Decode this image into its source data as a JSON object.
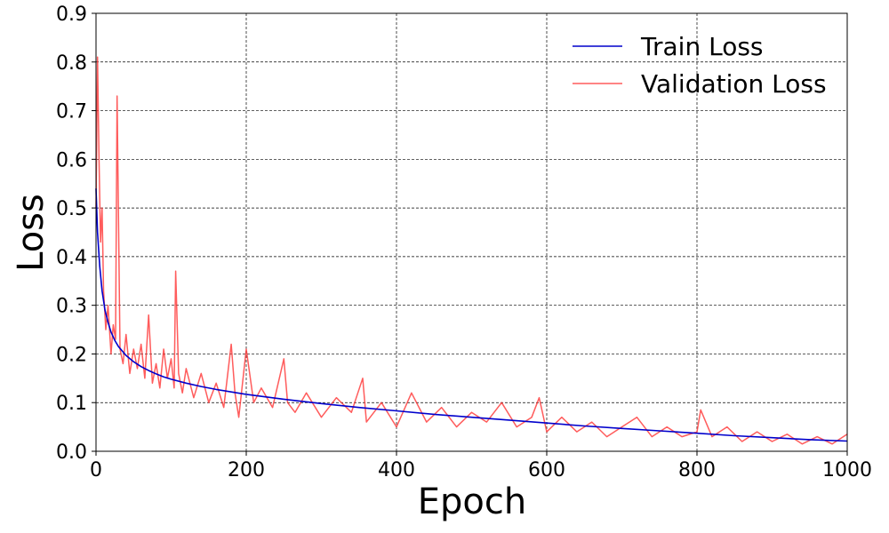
{
  "chart_data": {
    "type": "line",
    "title": "",
    "xlabel": "Epoch",
    "ylabel": "Loss",
    "xlim": [
      0,
      1000
    ],
    "ylim": [
      0,
      0.9
    ],
    "xticks": [
      0,
      200,
      400,
      600,
      800,
      1000
    ],
    "yticks": [
      0.0,
      0.1,
      0.2,
      0.3,
      0.4,
      0.5,
      0.6,
      0.7,
      0.8,
      0.9
    ],
    "xtick_labels": [
      "0",
      "200",
      "400",
      "600",
      "800",
      "1000"
    ],
    "ytick_labels": [
      "0.0",
      "0.1",
      "0.2",
      "0.3",
      "0.4",
      "0.5",
      "0.6",
      "0.7",
      "0.8",
      "0.9"
    ],
    "grid": true,
    "legend_position": "top-right",
    "series": [
      {
        "name": "Train Loss",
        "color": "#0000cc",
        "x": [
          0,
          2,
          5,
          8,
          12,
          16,
          20,
          25,
          30,
          40,
          50,
          60,
          70,
          80,
          90,
          100,
          120,
          140,
          160,
          180,
          200,
          250,
          300,
          350,
          400,
          450,
          500,
          550,
          600,
          650,
          700,
          750,
          800,
          850,
          900,
          950,
          1000
        ],
        "values": [
          0.54,
          0.45,
          0.38,
          0.33,
          0.29,
          0.265,
          0.245,
          0.228,
          0.215,
          0.197,
          0.184,
          0.174,
          0.166,
          0.159,
          0.153,
          0.148,
          0.14,
          0.133,
          0.127,
          0.122,
          0.117,
          0.107,
          0.098,
          0.09,
          0.083,
          0.076,
          0.07,
          0.064,
          0.058,
          0.052,
          0.047,
          0.042,
          0.037,
          0.032,
          0.028,
          0.024,
          0.021
        ]
      },
      {
        "name": "Validation Loss",
        "color": "#ff3333",
        "x": [
          0,
          2,
          4,
          6,
          8,
          10,
          13,
          16,
          20,
          23,
          26,
          28,
          32,
          36,
          40,
          45,
          50,
          55,
          60,
          65,
          70,
          75,
          80,
          85,
          90,
          95,
          100,
          104,
          106,
          110,
          115,
          120,
          130,
          140,
          150,
          160,
          170,
          180,
          185,
          190,
          200,
          210,
          220,
          235,
          250,
          255,
          265,
          280,
          300,
          320,
          340,
          355,
          360,
          380,
          400,
          420,
          440,
          460,
          480,
          500,
          520,
          540,
          560,
          580,
          590,
          600,
          620,
          640,
          660,
          680,
          700,
          720,
          740,
          760,
          780,
          800,
          805,
          820,
          840,
          860,
          880,
          900,
          920,
          940,
          960,
          980,
          1000
        ],
        "values": [
          0.5,
          0.81,
          0.6,
          0.43,
          0.5,
          0.33,
          0.25,
          0.3,
          0.2,
          0.26,
          0.23,
          0.73,
          0.21,
          0.18,
          0.24,
          0.16,
          0.21,
          0.17,
          0.22,
          0.15,
          0.28,
          0.14,
          0.18,
          0.13,
          0.21,
          0.15,
          0.19,
          0.13,
          0.37,
          0.16,
          0.12,
          0.17,
          0.11,
          0.16,
          0.1,
          0.14,
          0.09,
          0.22,
          0.12,
          0.07,
          0.21,
          0.1,
          0.13,
          0.09,
          0.19,
          0.1,
          0.08,
          0.12,
          0.07,
          0.11,
          0.08,
          0.15,
          0.06,
          0.1,
          0.05,
          0.12,
          0.06,
          0.09,
          0.05,
          0.08,
          0.06,
          0.1,
          0.05,
          0.07,
          0.11,
          0.04,
          0.07,
          0.04,
          0.06,
          0.03,
          0.05,
          0.07,
          0.03,
          0.05,
          0.03,
          0.04,
          0.085,
          0.03,
          0.05,
          0.02,
          0.04,
          0.02,
          0.035,
          0.015,
          0.03,
          0.015,
          0.035
        ]
      }
    ]
  }
}
